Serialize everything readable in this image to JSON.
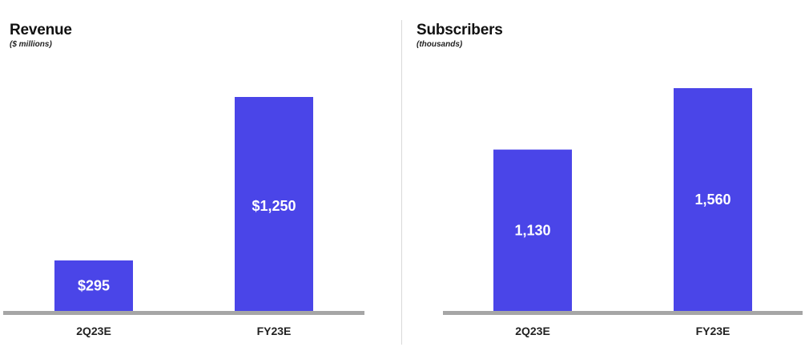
{
  "colors": {
    "bar": "#4a45e8",
    "baseline": "#a6a6a6",
    "divider": "#d9d9d9"
  },
  "chart_data": [
    {
      "type": "bar",
      "title": "Revenue",
      "subtitle": "($ millions)",
      "categories": [
        "2Q23E",
        "FY23E"
      ],
      "values": [
        295,
        1250
      ],
      "value_labels": [
        "$295",
        "$1,250"
      ],
      "grid": false,
      "legend": "none"
    },
    {
      "type": "bar",
      "title": "Subscribers",
      "subtitle": "(thousands)",
      "categories": [
        "2Q23E",
        "FY23E"
      ],
      "values": [
        1130,
        1560
      ],
      "value_labels": [
        "1,130",
        "1,560"
      ],
      "grid": false,
      "legend": "none"
    }
  ]
}
